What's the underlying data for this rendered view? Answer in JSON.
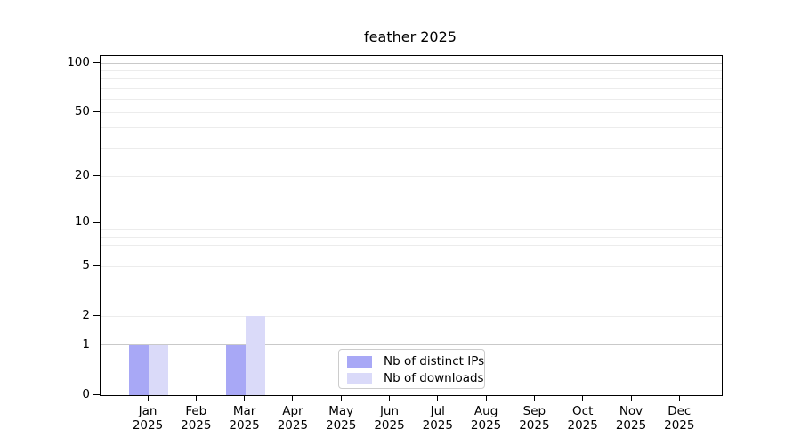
{
  "chart_data": {
    "type": "bar",
    "title": "feather 2025",
    "x_axis": {
      "categories": [
        "Jan",
        "Feb",
        "Mar",
        "Apr",
        "May",
        "Jun",
        "Jul",
        "Aug",
        "Sep",
        "Oct",
        "Nov",
        "Dec"
      ],
      "year": "2025"
    },
    "y_axis": {
      "scale": "log1p",
      "ticks": [
        0,
        1,
        2,
        5,
        10,
        20,
        50,
        100
      ],
      "major_gridlines": [
        1,
        10,
        100
      ],
      "minor_gridlines": [
        2,
        3,
        4,
        5,
        6,
        7,
        8,
        9,
        20,
        30,
        40,
        50,
        60,
        70,
        80,
        90
      ],
      "ylim": [
        0,
        112
      ]
    },
    "series": [
      {
        "name": "Nb of distinct IPs",
        "color": "#a8a8f6",
        "values": [
          1,
          0,
          1,
          0,
          0,
          0,
          0,
          0,
          0,
          0,
          0,
          0
        ]
      },
      {
        "name": "Nb of downloads",
        "color": "#dadaf9",
        "values": [
          1,
          0,
          2,
          0,
          0,
          0,
          0,
          0,
          0,
          0,
          0,
          0
        ]
      }
    ],
    "legend": {
      "position": "bottom-center"
    },
    "grid": "horizontal-only"
  },
  "style": {
    "major_grid_color": "#c9c9c9",
    "minor_grid_color": "#ececec",
    "spine_color": "#000000",
    "text_color": "#000000",
    "background": "#ffffff"
  }
}
